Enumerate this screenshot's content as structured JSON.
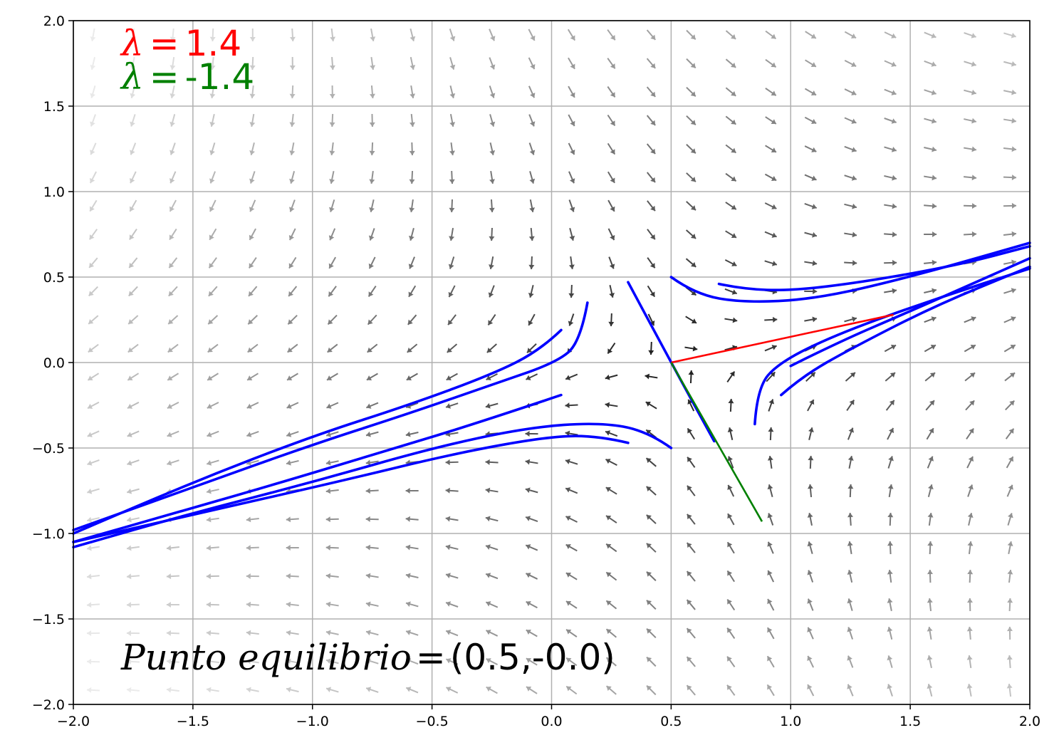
{
  "chart_data": {
    "type": "quiver",
    "title": "",
    "xlabel": "",
    "ylabel": "",
    "xlim": [
      -2.0,
      2.0
    ],
    "ylim": [
      -2.0,
      2.0
    ],
    "grid": true,
    "xticks": [
      "−2.0",
      "−1.5",
      "−1.0",
      "−0.5",
      "0.0",
      "0.5",
      "1.0",
      "1.5",
      "2.0"
    ],
    "xtick_values": [
      -2.0,
      -1.5,
      -1.0,
      -0.5,
      0.0,
      0.5,
      1.0,
      1.5,
      2.0
    ],
    "yticks": [
      "−2.0",
      "−1.5",
      "−1.0",
      "−0.5",
      "0.0",
      "0.5",
      "1.0",
      "1.5",
      "2.0"
    ],
    "ytick_values": [
      -2.0,
      -1.5,
      -1.0,
      -0.5,
      0.0,
      0.5,
      1.0,
      1.5,
      2.0
    ],
    "equilibrium": [
      0.5,
      0.0
    ],
    "eigenvalues": [
      {
        "symbol": "λ",
        "eq": "=",
        "value": "1.4",
        "color": "#ff0000"
      },
      {
        "symbol": "λ",
        "eq": "=",
        "value": "-1.4",
        "color": "#008000"
      }
    ],
    "annotation": {
      "prefix": "Punto equilibrio",
      "eq": "=",
      "value": "(0.5,-0.0)"
    },
    "eigenvector_unstable": {
      "color": "#ff0000",
      "points": [
        [
          0.5,
          0.0
        ],
        [
          1.43,
          0.28
        ]
      ]
    },
    "eigenvector_stable": {
      "color": "#008000",
      "points": [
        [
          0.5,
          0.0
        ],
        [
          0.88,
          -0.93
        ]
      ]
    },
    "trajectory_color": "#0000ff",
    "trajectories": [
      [
        [
          0.04,
          0.19
        ],
        [
          -0.05,
          0.07
        ],
        [
          -0.25,
          -0.07
        ],
        [
          -0.6,
          -0.25
        ],
        [
          -1.0,
          -0.43
        ],
        [
          -1.5,
          -0.7
        ],
        [
          -2.0,
          -1.0
        ]
      ],
      [
        [
          0.15,
          0.35
        ],
        [
          0.12,
          0.12
        ],
        [
          0.02,
          0.0
        ],
        [
          -0.25,
          -0.13
        ],
        [
          -0.6,
          -0.3
        ],
        [
          -1.0,
          -0.48
        ],
        [
          -1.5,
          -0.73
        ],
        [
          -2.0,
          -0.98
        ]
      ],
      [
        [
          0.04,
          -0.19
        ],
        [
          -0.3,
          -0.35
        ],
        [
          -0.7,
          -0.52
        ],
        [
          -1.2,
          -0.73
        ],
        [
          -1.6,
          -0.89
        ],
        [
          -2.0,
          -1.05
        ]
      ],
      [
        [
          0.5,
          -0.5
        ],
        [
          0.4,
          -0.4
        ],
        [
          0.2,
          -0.35
        ],
        [
          -0.1,
          -0.38
        ],
        [
          -0.5,
          -0.5
        ],
        [
          -1.0,
          -0.7
        ],
        [
          -1.5,
          -0.88
        ],
        [
          -2.0,
          -1.08
        ]
      ],
      [
        [
          0.32,
          -0.47
        ],
        [
          0.2,
          -0.43
        ],
        [
          0.0,
          -0.43
        ],
        [
          -0.4,
          -0.53
        ],
        [
          -0.9,
          -0.7
        ],
        [
          -1.5,
          -0.89
        ],
        [
          -2.0,
          -1.05
        ]
      ],
      [
        [
          0.32,
          0.47
        ],
        [
          0.5,
          0.0
        ],
        [
          0.68,
          -0.46
        ]
      ],
      [
        [
          0.5,
          0.5
        ],
        [
          0.6,
          0.4
        ],
        [
          0.8,
          0.35
        ],
        [
          1.1,
          0.37
        ],
        [
          1.5,
          0.5
        ],
        [
          2.0,
          0.7
        ]
      ],
      [
        [
          0.7,
          0.46
        ],
        [
          0.8,
          0.43
        ],
        [
          1.0,
          0.42
        ],
        [
          1.3,
          0.47
        ],
        [
          1.7,
          0.57
        ],
        [
          2.0,
          0.68
        ]
      ],
      [
        [
          0.85,
          -0.36
        ],
        [
          0.86,
          -0.15
        ],
        [
          0.95,
          0.0
        ],
        [
          1.2,
          0.17
        ],
        [
          1.6,
          0.37
        ],
        [
          2.0,
          0.55
        ]
      ],
      [
        [
          0.96,
          -0.19
        ],
        [
          1.05,
          -0.08
        ],
        [
          1.25,
          0.08
        ],
        [
          1.6,
          0.33
        ],
        [
          2.0,
          0.56
        ]
      ],
      [
        [
          1.0,
          -0.02
        ],
        [
          1.2,
          0.12
        ],
        [
          1.5,
          0.3
        ],
        [
          2.0,
          0.61
        ]
      ]
    ],
    "field_arrow_color": "#000000"
  }
}
